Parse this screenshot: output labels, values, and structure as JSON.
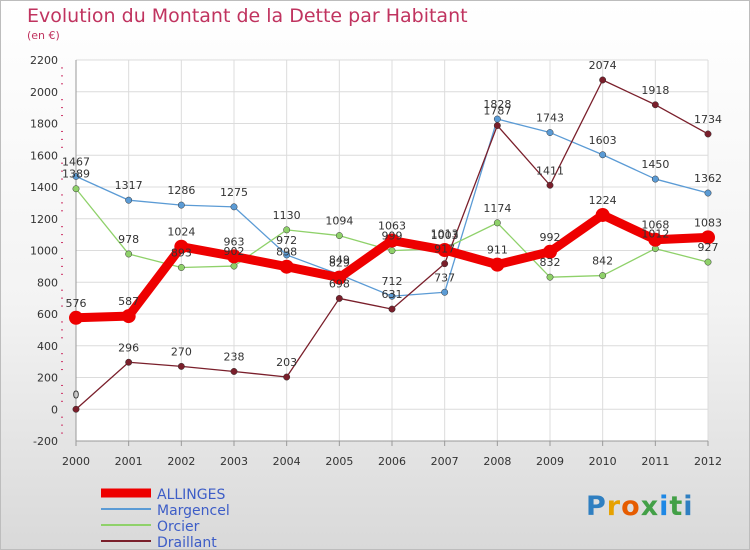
{
  "title": "Evolution du Montant de la Dette par Habitant",
  "subtitle": "(en €)",
  "logo": "Proxiti",
  "chart_data": {
    "type": "line",
    "x": [
      "2000",
      "2001",
      "2002",
      "2003",
      "2004",
      "2005",
      "2006",
      "2007",
      "2008",
      "2009",
      "2010",
      "2011",
      "2012"
    ],
    "ylim": [
      -200,
      2200
    ],
    "yticks": [
      -200,
      0,
      200,
      400,
      600,
      800,
      1000,
      1200,
      1400,
      1600,
      1800,
      2000,
      2200
    ],
    "grid": true,
    "legend_position": "bottom-left",
    "series": [
      {
        "name": "ALLINGES",
        "color": "#ee0000",
        "values": [
          576,
          587,
          1024,
          963,
          898,
          829,
          1063,
          1003,
          911,
          992,
          1224,
          1068,
          1083
        ]
      },
      {
        "name": "Margencel",
        "color": "#5b9bd5",
        "values": [
          1467,
          1317,
          1286,
          1275,
          972,
          849,
          712,
          737,
          1828,
          1743,
          1603,
          1450,
          1362
        ]
      },
      {
        "name": "Orcier",
        "color": "#8fd16a",
        "values": [
          1389,
          978,
          893,
          902,
          1130,
          1094,
          999,
          1013,
          1174,
          832,
          842,
          1012,
          927
        ]
      },
      {
        "name": "Draillant",
        "color": "#7a1f2b",
        "values": [
          0,
          296,
          270,
          238,
          203,
          698,
          631,
          917,
          1787,
          1411,
          2074,
          1918,
          1734
        ]
      }
    ]
  }
}
